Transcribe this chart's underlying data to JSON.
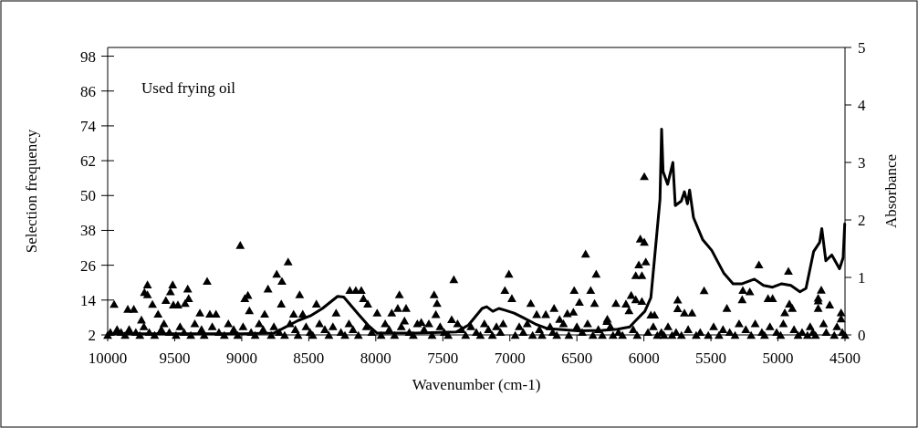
{
  "chart_data": {
    "type": "scatter",
    "xlabel": "Wavenumber (cm-1)",
    "ylabel": "Selection frequency",
    "y2label": "Absorbance",
    "annotations": [
      "Used frying oil"
    ],
    "xlim": [
      10000,
      4500
    ],
    "xticks": [
      10000,
      9500,
      9000,
      8500,
      8000,
      7500,
      7000,
      6500,
      6000,
      5500,
      5000,
      4500
    ],
    "ylim": [
      2,
      101
    ],
    "yticks": [
      2,
      14,
      26,
      38,
      50,
      62,
      74,
      86,
      98
    ],
    "y2lim": [
      0,
      5
    ],
    "y2ticks": [
      0,
      1,
      2,
      3,
      4,
      5
    ],
    "series": [
      {
        "color": "#000000",
        "marker": "triangle",
        "x": [
          9952,
          9850,
          9805,
          9748,
          9726,
          9703,
          9703,
          9666,
          9624,
          9566,
          9532,
          9515,
          9510,
          9476,
          9422,
          9403,
          9396,
          9312,
          9258,
          9238,
          9192,
          9011,
          8977,
          8954,
          8943,
          8829,
          8804,
          8739,
          8705,
          8700,
          8654,
          8613,
          8568,
          8545,
          8443,
          8296,
          8194,
          8149,
          8108,
          8092,
          8060,
          7990,
          7881,
          7836,
          7824,
          7786,
          7774,
          7661,
          7604,
          7565,
          7552,
          7543,
          7434,
          7418,
          7037,
          7007,
          6985,
          6844,
          6800,
          6732,
          6670,
          6629,
          6571,
          6526,
          6520,
          6481,
          6435,
          6397,
          6368,
          6356,
          6277,
          6273,
          6209,
          6134,
          6111,
          6095,
          6061,
          6061,
          6038,
          6027,
          6015,
          6015,
          5997,
          5997,
          5986,
          5948,
          5921,
          5748,
          5748,
          5698,
          5641,
          5551,
          5381,
          5267,
          5262,
          5210,
          5142,
          5074,
          5040,
          4949,
          4922,
          4915,
          4893,
          4700,
          4700,
          4700,
          4677,
          4614,
          4529,
          4529,
          10000,
          9980,
          9930,
          9900,
          9870,
          9840,
          9790,
          9760,
          9730,
          9690,
          9650,
          9600,
          9580,
          9540,
          9490,
          9460,
          9430,
          9380,
          9350,
          9300,
          9280,
          9220,
          9170,
          9130,
          9100,
          9060,
          9030,
          8990,
          8930,
          8900,
          8870,
          8840,
          8780,
          8760,
          8720,
          8680,
          8640,
          8600,
          8580,
          8520,
          8490,
          8470,
          8420,
          8380,
          8350,
          8320,
          8260,
          8230,
          8200,
          8170,
          8130,
          8070,
          8030,
          7960,
          7930,
          7900,
          7860,
          7810,
          7750,
          7720,
          7690,
          7640,
          7580,
          7520,
          7490,
          7460,
          7390,
          7360,
          7330,
          7290,
          7250,
          7220,
          7190,
          7160,
          7130,
          7100,
          7070,
          7050,
          6960,
          6930,
          6900,
          6870,
          6830,
          6780,
          6760,
          6700,
          6680,
          6650,
          6600,
          6560,
          6500,
          6460,
          6420,
          6380,
          6340,
          6310,
          6250,
          6230,
          6190,
          6160,
          6080,
          6050,
          5970,
          5930,
          5900,
          5870,
          5850,
          5820,
          5790,
          5760,
          5720,
          5670,
          5610,
          5580,
          5520,
          5480,
          5440,
          5410,
          5360,
          5320,
          5290,
          5240,
          5200,
          5170,
          5120,
          5100,
          5060,
          5010,
          4980,
          4960,
          4880,
          4850,
          4820,
          4780,
          4760,
          4740,
          4720,
          4660,
          4640,
          4580,
          4560,
          4520,
          4500
        ],
        "values": [
          12.7,
          11,
          11,
          7.3,
          16.8,
          19.4,
          16,
          12.7,
          9.3,
          14,
          17,
          19.4,
          12.5,
          12.5,
          13,
          18,
          14.7,
          9.7,
          20.6,
          9.3,
          9.3,
          33,
          14.7,
          15.8,
          10.5,
          9.3,
          18,
          23.1,
          12.8,
          20.6,
          27.3,
          9.3,
          16,
          9.3,
          12.8,
          9.7,
          17.5,
          17.5,
          17.5,
          14.7,
          12.8,
          9.7,
          9.7,
          11.3,
          16,
          7,
          11.3,
          6.5,
          6,
          16,
          9.2,
          13,
          7.4,
          21.2,
          17.5,
          23.1,
          14.7,
          13,
          9.2,
          9.2,
          11.3,
          7.5,
          9.5,
          10,
          17.5,
          13.4,
          30,
          17.5,
          13,
          23.1,
          6.8,
          7.6,
          13,
          12.8,
          10.5,
          15.8,
          22.6,
          14.3,
          26.3,
          35.2,
          22.6,
          13.7,
          56.7,
          34.1,
          27.3,
          9,
          9,
          14.2,
          11.2,
          9.7,
          9.7,
          17.4,
          11.3,
          14.3,
          17.5,
          17,
          26.3,
          14.7,
          14.7,
          9.8,
          24.1,
          12.8,
          11.3,
          14.8,
          13.9,
          11.3,
          17.6,
          12.5,
          9.8,
          7.7,
          2,
          3,
          4,
          3,
          2,
          4,
          3,
          2,
          5,
          3,
          2,
          4,
          6,
          3,
          2,
          5,
          3,
          2,
          6,
          4,
          2,
          5,
          3,
          2,
          6,
          4,
          2,
          5,
          3,
          2,
          6,
          4,
          2,
          5,
          3,
          2,
          6,
          4,
          2,
          5,
          3,
          2,
          6,
          4,
          2,
          5,
          3,
          2,
          6,
          4,
          2,
          5,
          3,
          2,
          6,
          4,
          2,
          5,
          3,
          2,
          6,
          4,
          2,
          5,
          3,
          2,
          6,
          4,
          2,
          5,
          3,
          2,
          6,
          4,
          2,
          5,
          3,
          6,
          2,
          5,
          3,
          6,
          2,
          4,
          2,
          5,
          3,
          2,
          6,
          2,
          5,
          3,
          6,
          2,
          4,
          2,
          5,
          2,
          3,
          2,
          4,
          2,
          3,
          5,
          2,
          3,
          2,
          5,
          2,
          3,
          2,
          4,
          2,
          3,
          2,
          5,
          2,
          4,
          3,
          2,
          6,
          4,
          2,
          6,
          3,
          2,
          5,
          3,
          2,
          6,
          4,
          2,
          3,
          2,
          5,
          3,
          2,
          6,
          3,
          2,
          5,
          3,
          2
        ]
      },
      {
        "type": "line",
        "axis": "y2",
        "color": "#000000",
        "marker": "none",
        "line_style": "solid",
        "x": [
          10000,
          9500,
          9000,
          8761,
          8580,
          8489,
          8398,
          8285,
          8239,
          8126,
          8058,
          7990,
          7700,
          7400,
          7309,
          7207,
          7173,
          7127,
          7082,
          7037,
          6968,
          6900,
          6810,
          6719,
          6492,
          6311,
          6197,
          6106,
          6061,
          5993,
          5948,
          5914,
          5880,
          5868,
          5857,
          5823,
          5784,
          5766,
          5721,
          5698,
          5675,
          5659,
          5630,
          5562,
          5494,
          5403,
          5335,
          5267,
          5176,
          5108,
          5040,
          4972,
          4904,
          4836,
          4791,
          4734,
          4689,
          4673,
          4643,
          4598,
          4541,
          4514,
          4502
        ],
        "values": [
          0.02,
          0.02,
          0.02,
          0.03,
          0.25,
          0.33,
          0.46,
          0.67,
          0.66,
          0.35,
          0.17,
          0.03,
          0.03,
          0.05,
          0.17,
          0.46,
          0.49,
          0.41,
          0.46,
          0.43,
          0.38,
          0.3,
          0.19,
          0.11,
          0.07,
          0.08,
          0.1,
          0.14,
          0.25,
          0.41,
          0.65,
          1.5,
          2.36,
          3.58,
          2.84,
          2.62,
          3.0,
          2.25,
          2.33,
          2.49,
          2.28,
          2.52,
          2.04,
          1.66,
          1.47,
          1.07,
          0.89,
          0.89,
          0.97,
          0.86,
          0.83,
          0.89,
          0.86,
          0.75,
          0.81,
          1.45,
          1.61,
          1.85,
          1.29,
          1.39,
          1.15,
          1.34,
          1.93
        ]
      }
    ]
  }
}
